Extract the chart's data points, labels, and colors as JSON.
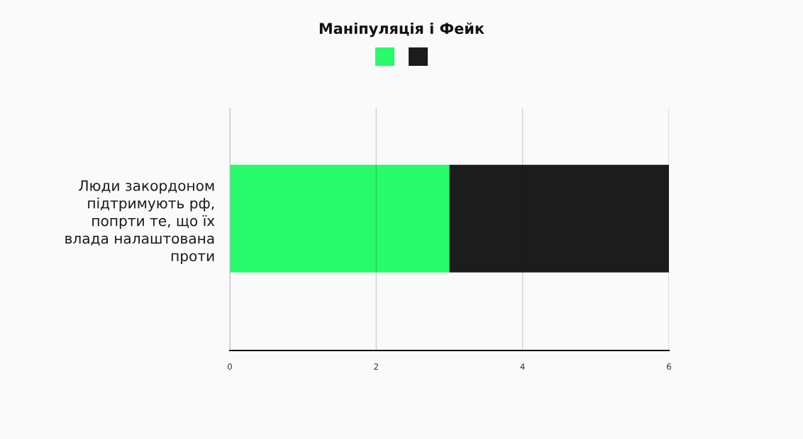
{
  "chart_data": {
    "type": "bar",
    "title": "Маніпуляція і Фейк",
    "orientation": "horizontal",
    "stacked": true,
    "categories": [
      "Люди закордоном\nпідтримують рф,\nпопрти те, що їх\nвлада налаштована\nпроти"
    ],
    "series": [
      {
        "color": "#27fb6b",
        "values": [
          3
        ]
      },
      {
        "color": "#1c1c1c",
        "values": [
          3
        ]
      }
    ],
    "xlim": [
      0,
      6
    ],
    "xticks": [
      0,
      2,
      4,
      6
    ],
    "grid": "x"
  }
}
